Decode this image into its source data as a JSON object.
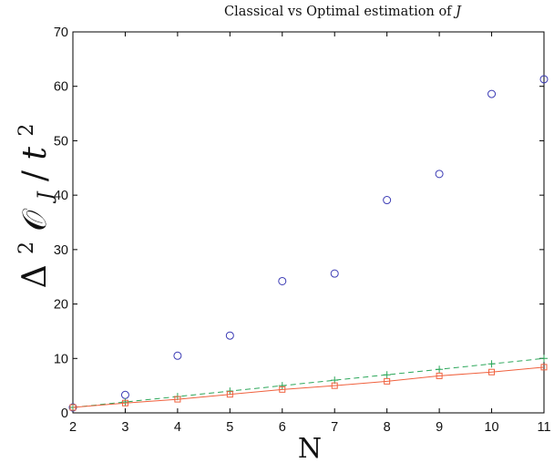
{
  "chart_data": {
    "type": "scatter",
    "title": {
      "text": "Classical vs Optimal estimation of ",
      "symbol": "J"
    },
    "xlabel": "N",
    "ylabel": {
      "delta": "Δ",
      "power": "2",
      "symbol": "𝒪",
      "subscript": "J",
      "slash": "/",
      "t": "t",
      "t_power": "2"
    },
    "xlim": [
      2,
      11
    ],
    "ylim": [
      0,
      70
    ],
    "xticks": [
      2,
      3,
      4,
      5,
      6,
      7,
      8,
      9,
      10,
      11
    ],
    "yticks": [
      0,
      10,
      20,
      30,
      40,
      50,
      60,
      70
    ],
    "grid": false,
    "legend": null,
    "series": [
      {
        "marker": "circle",
        "line": "none",
        "color": "#3a3ab4",
        "x": [
          2,
          3,
          4,
          5,
          6,
          7,
          8,
          9,
          10,
          11
        ],
        "y": [
          1.0,
          3.3,
          10.5,
          14.2,
          24.2,
          25.6,
          39.1,
          43.9,
          58.6,
          61.3
        ]
      },
      {
        "marker": "plus",
        "line": "dashed",
        "color": "#2ca75a",
        "x": [
          2,
          3,
          4,
          5,
          6,
          7,
          8,
          9,
          10,
          11
        ],
        "y": [
          1,
          2,
          3,
          4,
          5,
          6,
          7,
          8,
          9,
          10
        ]
      },
      {
        "marker": "square",
        "line": "solid",
        "color": "#f0613e",
        "x": [
          2,
          3,
          4,
          5,
          6,
          7,
          8,
          9,
          10,
          11
        ],
        "y": [
          1.0,
          1.8,
          2.5,
          3.4,
          4.3,
          5.0,
          5.8,
          6.8,
          7.5,
          8.4
        ]
      }
    ]
  }
}
